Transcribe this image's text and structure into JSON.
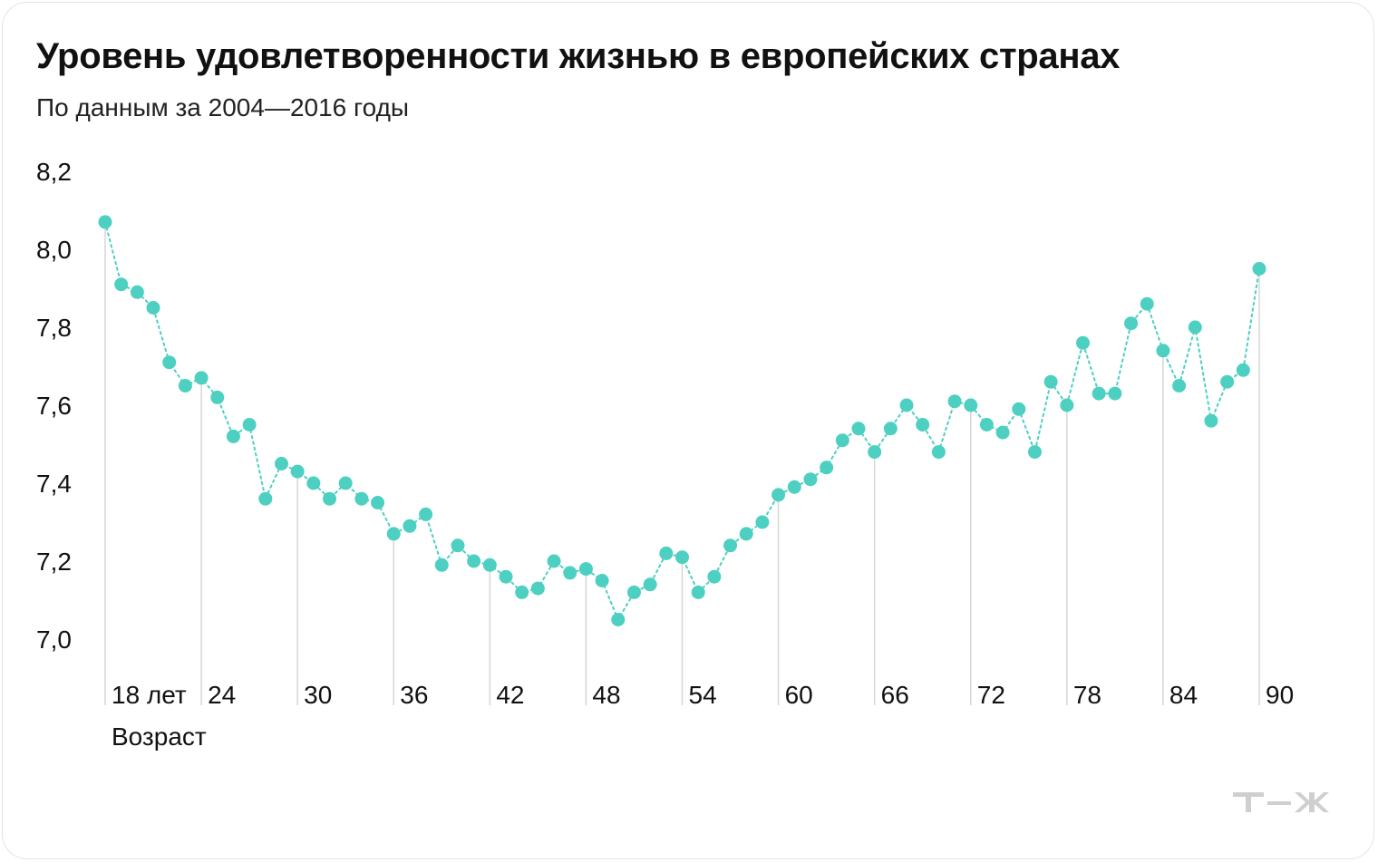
{
  "title": "Уровень удовлетворенности жизнью в европейских странах",
  "subtitle": "По данным за 2004—2016 годы",
  "logo_icon": "tzh-logo-icon",
  "colors": {
    "point": "#4dd0c1",
    "line": "#4dd0c1",
    "ref_line": "#d6d6d6",
    "text": "#111111",
    "logo": "#cfcfcf"
  },
  "chart_data": {
    "type": "scatter",
    "connected": true,
    "line_style": "dotted",
    "title": "Уровень удовлетворенности жизнью в европейских странах",
    "subtitle": "По данным за 2004—2016 годы",
    "xlabel": "Возраст",
    "ylabel": "",
    "xlim": [
      18,
      90
    ],
    "ylim": [
      7.0,
      8.2
    ],
    "y_ticks": [
      "7,0",
      "7,2",
      "7,4",
      "7,6",
      "7,8",
      "8,0",
      "8,2"
    ],
    "x_ticks": [
      {
        "x": 18,
        "label": "18 лет"
      },
      {
        "x": 24,
        "label": "24"
      },
      {
        "x": 30,
        "label": "30"
      },
      {
        "x": 36,
        "label": "36"
      },
      {
        "x": 42,
        "label": "42"
      },
      {
        "x": 48,
        "label": "48"
      },
      {
        "x": 54,
        "label": "54"
      },
      {
        "x": 60,
        "label": "60"
      },
      {
        "x": 66,
        "label": "66"
      },
      {
        "x": 72,
        "label": "72"
      },
      {
        "x": 78,
        "label": "78"
      },
      {
        "x": 84,
        "label": "84"
      },
      {
        "x": 90,
        "label": "90"
      }
    ],
    "grid": false,
    "legend": "none",
    "x": [
      18,
      19,
      20,
      21,
      22,
      23,
      24,
      25,
      26,
      27,
      28,
      29,
      30,
      31,
      32,
      33,
      34,
      35,
      36,
      37,
      38,
      39,
      40,
      41,
      42,
      43,
      44,
      45,
      46,
      47,
      48,
      49,
      50,
      51,
      52,
      53,
      54,
      55,
      56,
      57,
      58,
      59,
      60,
      61,
      62,
      63,
      64,
      65,
      66,
      67,
      68,
      69,
      70,
      71,
      72,
      73,
      74,
      75,
      76,
      77,
      78,
      79,
      80,
      81,
      82,
      83,
      84,
      85,
      86,
      87,
      88,
      89,
      90
    ],
    "values": [
      8.07,
      7.91,
      7.89,
      7.85,
      7.71,
      7.65,
      7.67,
      7.62,
      7.52,
      7.55,
      7.36,
      7.45,
      7.43,
      7.4,
      7.36,
      7.4,
      7.36,
      7.35,
      7.27,
      7.29,
      7.32,
      7.19,
      7.24,
      7.2,
      7.19,
      7.16,
      7.12,
      7.13,
      7.2,
      7.17,
      7.18,
      7.15,
      7.05,
      7.12,
      7.14,
      7.22,
      7.21,
      7.12,
      7.16,
      7.24,
      7.27,
      7.3,
      7.37,
      7.39,
      7.41,
      7.44,
      7.51,
      7.54,
      7.48,
      7.54,
      7.6,
      7.55,
      7.48,
      7.61,
      7.6,
      7.55,
      7.53,
      7.59,
      7.48,
      7.66,
      7.6,
      7.76,
      7.63,
      7.63,
      7.81,
      7.86,
      7.74,
      7.65,
      7.8,
      7.56,
      7.66,
      7.69,
      7.95
    ]
  }
}
